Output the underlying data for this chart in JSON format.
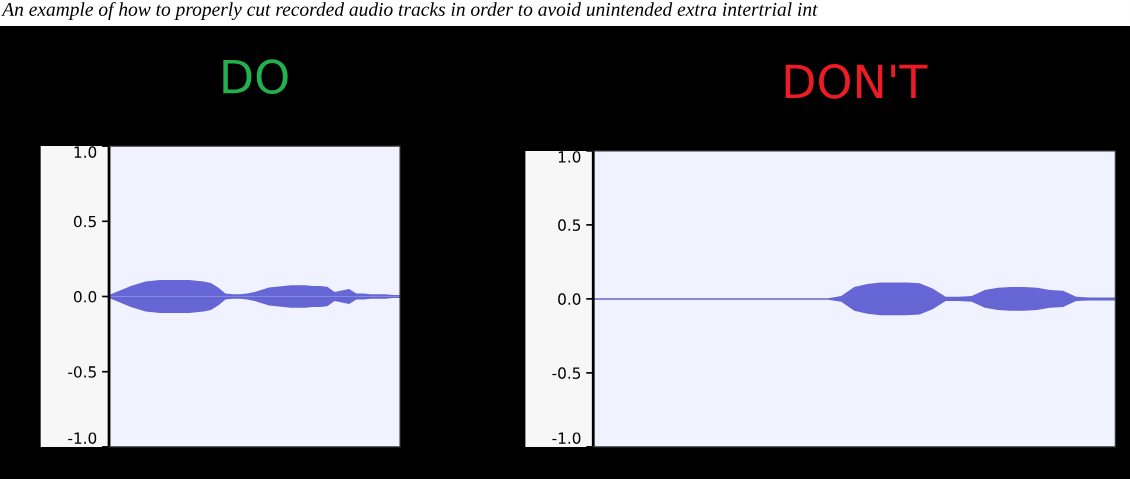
{
  "chart_data": [
    {
      "type": "area",
      "title": "DO",
      "annotations": [
        "An example of how to properly cut recorded audio tracks in order to avoid unintended extra intertrial int"
      ],
      "categories": [
        null,
        null,
        null,
        null,
        null,
        null,
        null,
        null,
        null,
        null,
        null,
        null,
        null,
        null,
        null,
        null,
        null,
        null,
        null,
        null,
        null,
        null,
        null,
        null,
        null,
        null,
        null,
        null,
        null,
        null,
        null,
        null,
        null,
        null,
        null,
        null,
        null,
        null,
        null,
        null,
        null
      ],
      "ylim": [
        -1.0,
        1.0
      ],
      "yticks": [
        {
          "value": 1.0,
          "label": "1.0"
        },
        {
          "value": 0.5,
          "label": "0.5"
        },
        {
          "value": 0.0,
          "label": "0.0"
        },
        {
          "value": -0.5,
          "label": "-0.5"
        },
        {
          "value": -1.0,
          "label": "-1.0"
        }
      ],
      "tick_labels": "y",
      "grid": false,
      "series": [
        {
          "color": "#6666d6",
          "values": [
            0.01,
            0.03,
            0.05,
            0.07,
            0.085,
            0.1,
            0.105,
            0.11,
            0.11,
            0.11,
            0.11,
            0.11,
            0.105,
            0.1,
            0.09,
            0.06,
            0.02,
            0.015,
            0.015,
            0.02,
            0.03,
            0.045,
            0.06,
            0.065,
            0.07,
            0.075,
            0.075,
            0.075,
            0.07,
            0.07,
            0.065,
            0.03,
            0.04,
            0.05,
            0.02,
            0.02,
            0.015,
            0.015,
            0.015,
            0.01,
            0.01
          ]
        },
        {
          "color": "#6565d4",
          "values": [
            -0.01,
            -0.03,
            -0.05,
            -0.07,
            -0.085,
            -0.1,
            -0.105,
            -0.11,
            -0.11,
            -0.11,
            -0.11,
            -0.11,
            -0.105,
            -0.1,
            -0.09,
            -0.06,
            -0.02,
            -0.015,
            -0.015,
            -0.02,
            -0.03,
            -0.045,
            -0.06,
            -0.065,
            -0.07,
            -0.075,
            -0.075,
            -0.075,
            -0.07,
            -0.07,
            -0.065,
            -0.03,
            -0.04,
            -0.05,
            -0.02,
            -0.02,
            -0.015,
            -0.015,
            -0.015,
            -0.01,
            -0.01
          ]
        }
      ]
    },
    {
      "type": "area",
      "title": "DON'T",
      "categories": [
        null,
        null,
        null,
        null,
        null,
        null,
        null,
        null,
        null,
        null,
        null,
        null,
        null,
        null,
        null,
        null,
        null,
        null,
        null,
        null,
        null,
        null,
        null,
        null,
        null,
        null,
        null,
        null,
        null,
        null,
        null,
        null,
        null,
        null,
        null,
        null,
        null,
        null,
        null,
        null,
        null
      ],
      "ylim": [
        -1.0,
        1.0
      ],
      "yticks": [
        {
          "value": 1.0,
          "label": "1.0"
        },
        {
          "value": 0.5,
          "label": "0.5"
        },
        {
          "value": 0.0,
          "label": "0.0"
        },
        {
          "value": -0.5,
          "label": "-0.5"
        },
        {
          "value": -1.0,
          "label": "-1.0"
        }
      ],
      "tick_labels": "y",
      "grid": false,
      "series": [
        {
          "color": "#6666d6",
          "values": [
            0.005,
            0.005,
            0.005,
            0.005,
            0.005,
            0.005,
            0.005,
            0.005,
            0.005,
            0.005,
            0.005,
            0.005,
            0.005,
            0.005,
            0.005,
            0.005,
            0.005,
            0.005,
            0.005,
            0.02,
            0.08,
            0.1,
            0.11,
            0.11,
            0.11,
            0.105,
            0.07,
            0.015,
            0.015,
            0.02,
            0.06,
            0.075,
            0.08,
            0.08,
            0.075,
            0.06,
            0.055,
            0.015,
            0.01,
            0.01,
            0.01
          ]
        },
        {
          "color": "#6565d4",
          "values": [
            -0.005,
            -0.005,
            -0.005,
            -0.005,
            -0.005,
            -0.005,
            -0.005,
            -0.005,
            -0.005,
            -0.005,
            -0.005,
            -0.005,
            -0.005,
            -0.005,
            -0.005,
            -0.005,
            -0.005,
            -0.005,
            -0.005,
            -0.02,
            -0.08,
            -0.1,
            -0.11,
            -0.11,
            -0.11,
            -0.105,
            -0.07,
            -0.015,
            -0.015,
            -0.02,
            -0.06,
            -0.075,
            -0.08,
            -0.08,
            -0.075,
            -0.06,
            -0.055,
            -0.015,
            -0.01,
            -0.01,
            -0.01
          ]
        }
      ]
    }
  ]
}
